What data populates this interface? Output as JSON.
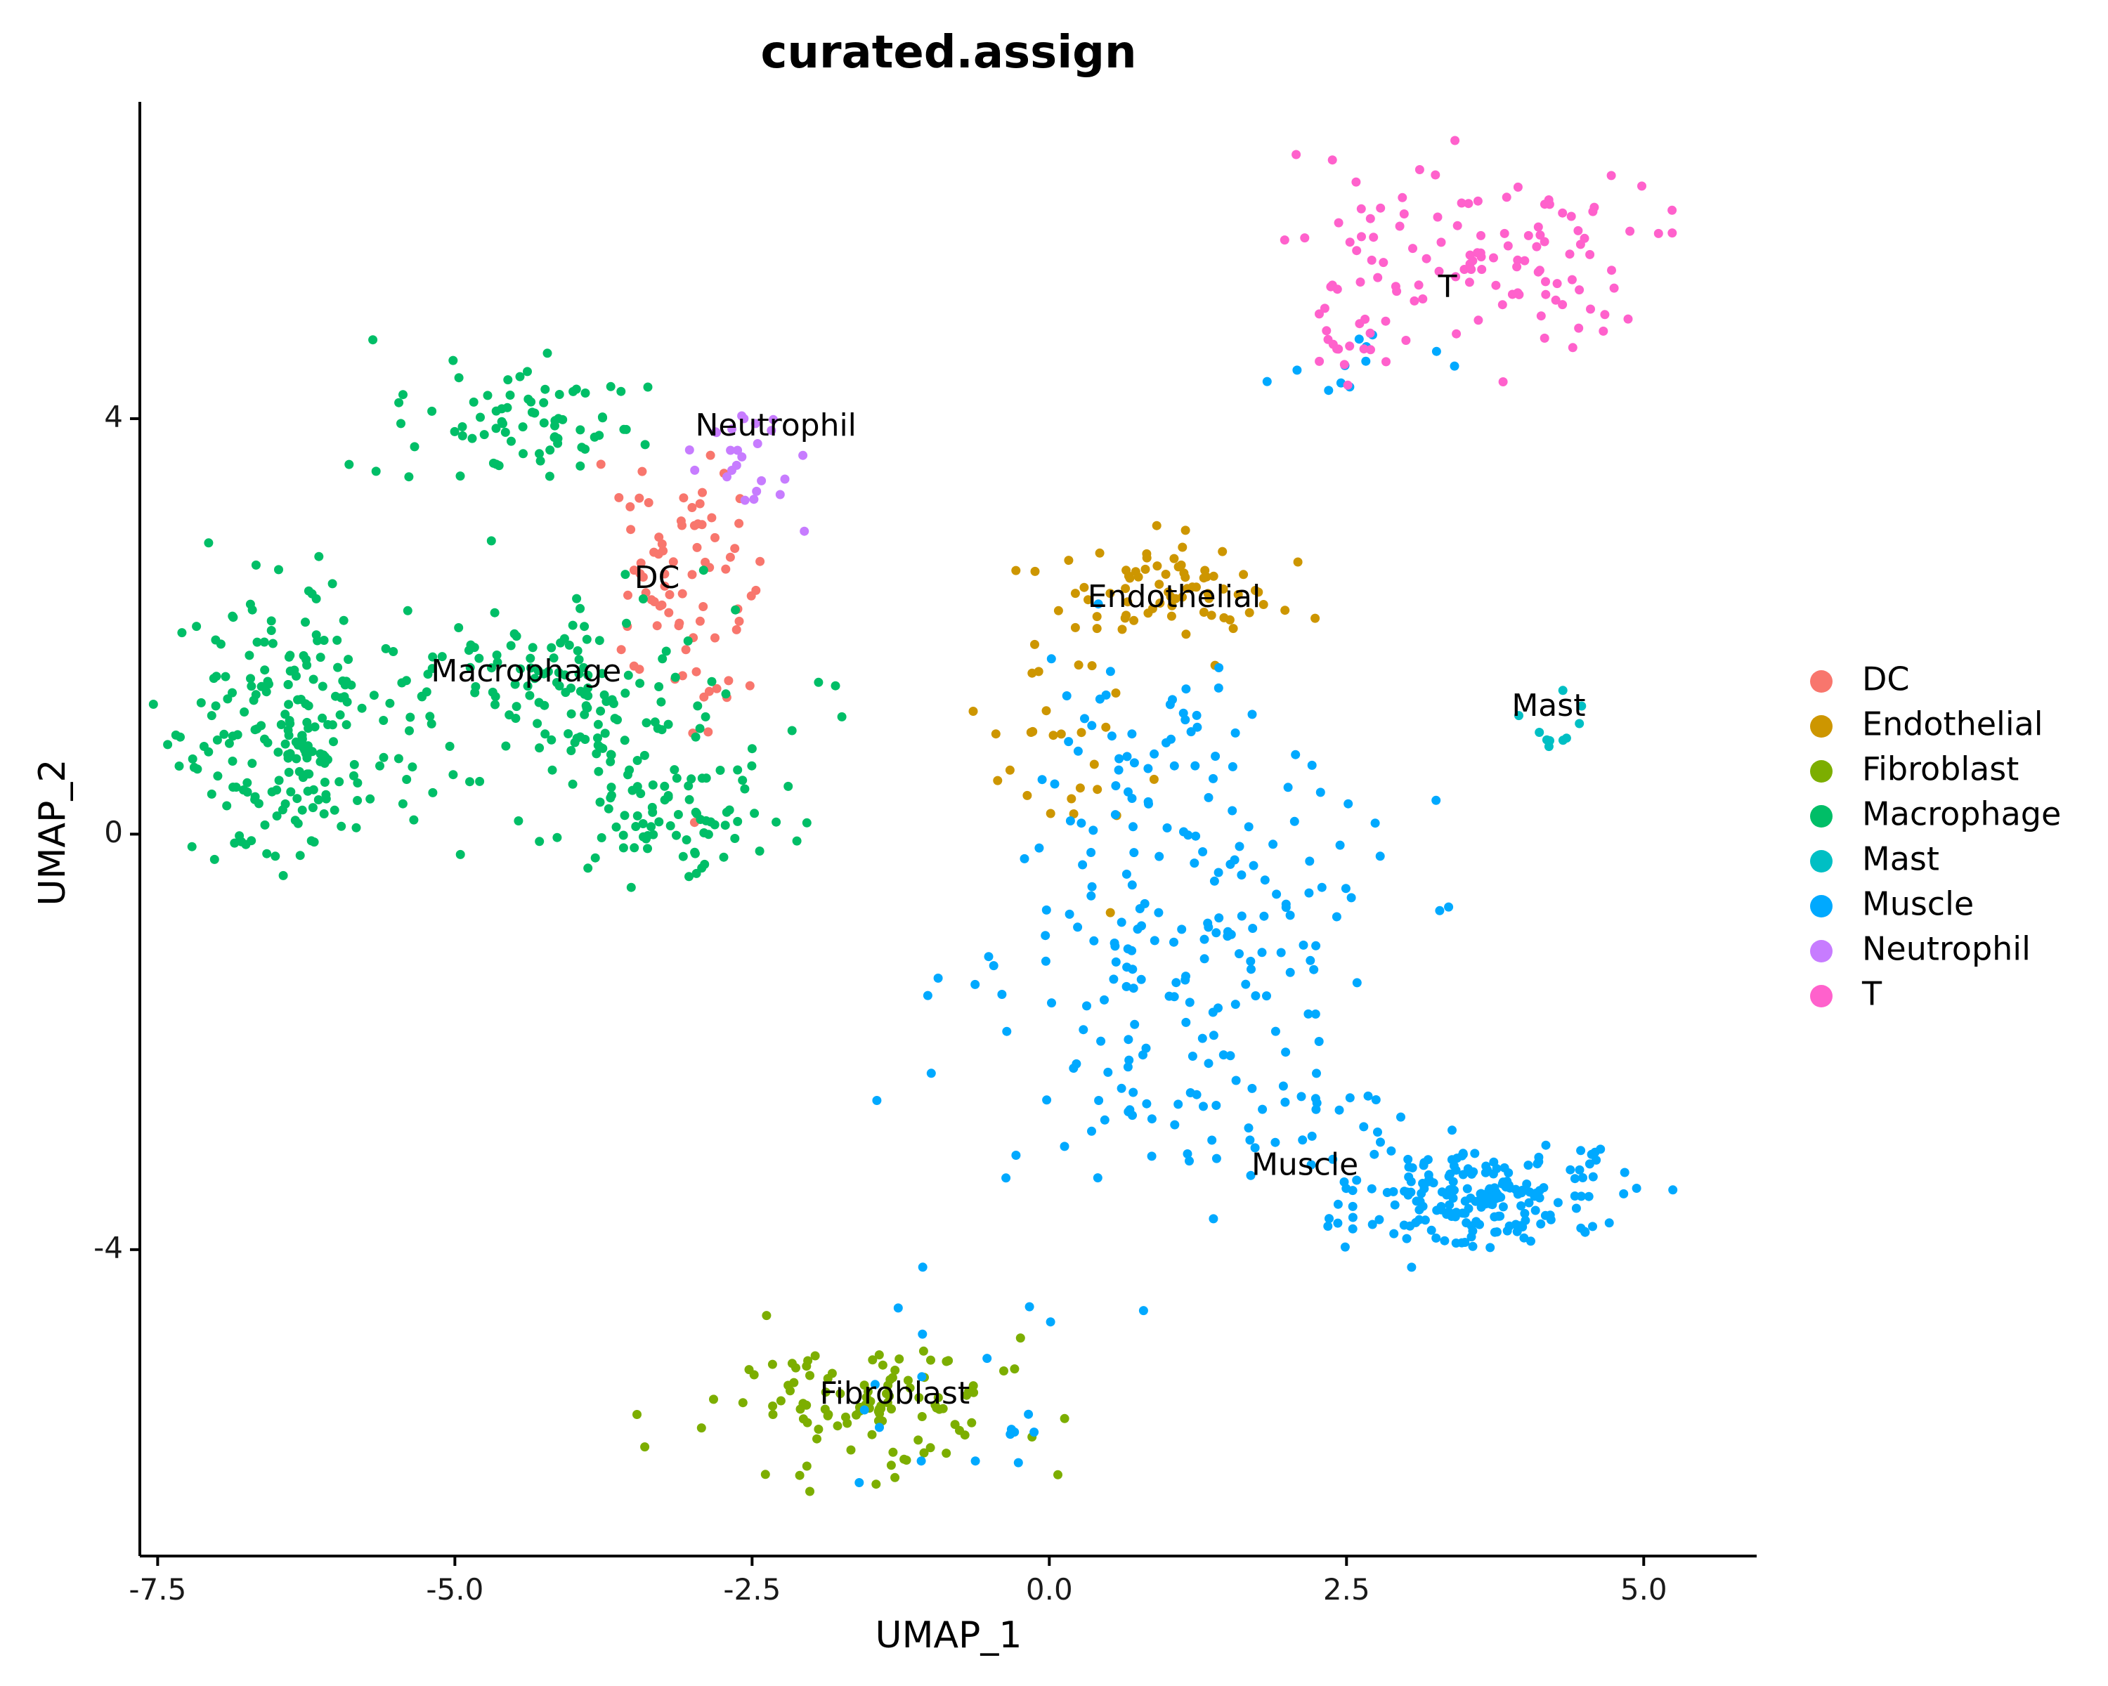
{
  "chart_data": {
    "type": "scatter",
    "title": "curated.assign",
    "xlabel": "UMAP_1",
    "ylabel": "UMAP_2",
    "xlim": [
      -7.65,
      5.95
    ],
    "ylim": [
      -6.95,
      7.05
    ],
    "x_ticks": [
      {
        "value": -7.5,
        "label": "-7.5"
      },
      {
        "value": -5.0,
        "label": "-5.0"
      },
      {
        "value": -2.5,
        "label": "-2.5"
      },
      {
        "value": 0.0,
        "label": "0.0"
      },
      {
        "value": 2.5,
        "label": "2.5"
      },
      {
        "value": 5.0,
        "label": "5.0"
      }
    ],
    "y_ticks": [
      {
        "value": -4,
        "label": "-4"
      },
      {
        "value": 0,
        "label": "0"
      },
      {
        "value": 4,
        "label": "4"
      }
    ],
    "grid": false,
    "legend_position": "right",
    "series": [
      {
        "name": "DC",
        "color": "#F8766D",
        "clusters": [
          {
            "cx": -3.15,
            "cy": 2.3,
            "sx": 0.32,
            "sy": 0.75,
            "n": 80
          }
        ]
      },
      {
        "name": "Endothelial",
        "color": "#CD9600",
        "clusters": [
          {
            "cx": 1.0,
            "cy": 2.35,
            "sx": 0.42,
            "sy": 0.2,
            "n": 70
          },
          {
            "cx": 0.2,
            "cy": 1.0,
            "sx": 0.45,
            "sy": 0.6,
            "n": 30
          }
        ]
      },
      {
        "name": "Fibroblast",
        "color": "#7CAE00",
        "clusters": [
          {
            "cx": -1.5,
            "cy": -5.45,
            "sx": 0.65,
            "sy": 0.32,
            "n": 110
          }
        ]
      },
      {
        "name": "Macrophage",
        "color": "#00BE67",
        "clusters": [
          {
            "cx": -6.35,
            "cy": 0.9,
            "sx": 0.45,
            "sy": 0.6,
            "n": 210
          },
          {
            "cx": -4.4,
            "cy": 3.95,
            "sx": 0.55,
            "sy": 0.25,
            "n": 75
          },
          {
            "cx": -3.9,
            "cy": 1.3,
            "sx": 0.85,
            "sy": 0.65,
            "n": 170
          },
          {
            "cx": -3.0,
            "cy": 0.15,
            "sx": 0.45,
            "sy": 0.3,
            "n": 60
          }
        ]
      },
      {
        "name": "Mast",
        "color": "#00BFC4",
        "clusters": [
          {
            "cx": 4.25,
            "cy": 1.0,
            "sx": 0.18,
            "sy": 0.15,
            "n": 10
          }
        ]
      },
      {
        "name": "Muscle",
        "color": "#00A9FF",
        "clusters": [
          {
            "cx": 3.6,
            "cy": -3.5,
            "sx": 0.55,
            "sy": 0.25,
            "n": 200
          },
          {
            "cx": 1.2,
            "cy": -1.0,
            "sx": 0.8,
            "sy": 1.0,
            "n": 180
          },
          {
            "cx": 1.5,
            "cy": -2.7,
            "sx": 0.75,
            "sy": 0.35,
            "n": 40
          },
          {
            "cx": 0.8,
            "cy": 0.9,
            "sx": 0.5,
            "sy": 0.5,
            "n": 30
          },
          {
            "cx": -1.0,
            "cy": -5.2,
            "sx": 0.6,
            "sy": 0.5,
            "n": 20
          },
          {
            "cx": 2.5,
            "cy": 4.5,
            "sx": 0.3,
            "sy": 0.3,
            "n": 12
          }
        ]
      },
      {
        "name": "Neutrophil",
        "color": "#C77CFF",
        "clusters": [
          {
            "cx": -2.55,
            "cy": 3.75,
            "sx": 0.25,
            "sy": 0.25,
            "n": 25
          }
        ]
      },
      {
        "name": "T",
        "color": "#FF61CC",
        "clusters": [
          {
            "cx": 3.6,
            "cy": 5.6,
            "sx": 0.75,
            "sy": 0.5,
            "n": 110
          },
          {
            "cx": 2.6,
            "cy": 4.8,
            "sx": 0.3,
            "sy": 0.25,
            "n": 20
          }
        ]
      }
    ],
    "annotations": [
      {
        "text": "DC",
        "x": -3.3,
        "y": 2.45
      },
      {
        "text": "Endothelial",
        "x": 1.05,
        "y": 2.27
      },
      {
        "text": "Fibroblast",
        "x": -1.3,
        "y": -5.4
      },
      {
        "text": "Macrophage",
        "x": -4.4,
        "y": 1.55
      },
      {
        "text": "Mast",
        "x": 4.2,
        "y": 1.22
      },
      {
        "text": "Muscle",
        "x": 2.15,
        "y": -3.2
      },
      {
        "text": "Neutrophil",
        "x": -2.3,
        "y": 3.92
      },
      {
        "text": "T",
        "x": 3.35,
        "y": 5.25
      }
    ]
  }
}
